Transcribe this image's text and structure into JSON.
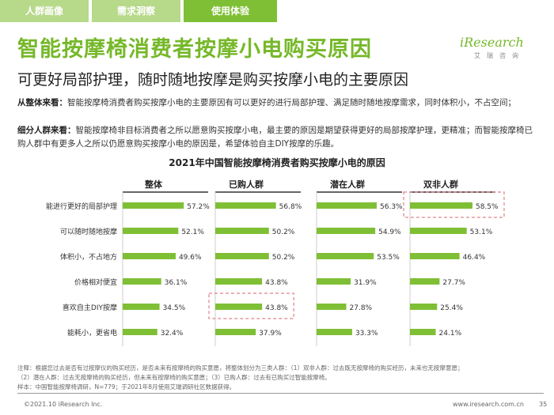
{
  "tabs": [
    "人群画像",
    "需求洞察",
    "使用体验"
  ],
  "title": "智能按摩椅消费者按摩小电购买原因",
  "subtitle": "可更好局部护理，随时随地按摩是购买按摩小电的主要原因",
  "logo": {
    "text": "iResearch",
    "sub": "艾瑞咨询"
  },
  "para1": {
    "label": "从整体来看：",
    "text": "智能按摩椅消费者购买按摩小电的主要原因有可以更好的进行局部护理、满足随时随地按摩需求，同时体积小，不占空间；"
  },
  "para2": {
    "label": "细分人群来看：",
    "text": "智能按摩椅非目标消费者之所以愿意购买按摩小电，最主要的原因是期望获得更好的局部按摩护理，更精准；而智能按摩椅已购人群中有更多人之所以仍愿意购买按摩小电的原因是，希望体验自主DIY按摩的乐趣。"
  },
  "chart_data": {
    "type": "bar",
    "orientation": "horizontal",
    "title": "2021年中国智能按摩椅消费者购买按摩小电的原因",
    "categories": [
      "能进行更好的局部护理",
      "可以随时随地按摩",
      "体积小，不占地方",
      "价格相对便宜",
      "喜欢自主DIY按摩",
      "能耗小，更省电"
    ],
    "series": [
      {
        "name": "整体",
        "values": [
          57.2,
          52.1,
          49.6,
          36.1,
          34.5,
          32.4
        ],
        "labels": [
          "57.2%",
          "52.1%",
          "49.6%",
          "36.1%",
          "34.5%",
          "32.4%"
        ]
      },
      {
        "name": "已购人群",
        "values": [
          56.8,
          50.2,
          50.2,
          43.8,
          43.8,
          37.9
        ],
        "labels": [
          "56.8%",
          "50.2%",
          "50.2%",
          "43.8%",
          "43.8%",
          "37.9%"
        ]
      },
      {
        "name": "潜在人群",
        "values": [
          56.3,
          54.9,
          53.5,
          31.9,
          27.8,
          33.3
        ],
        "labels": [
          "56.3%",
          "54.9%",
          "53.5%",
          "31.9%",
          "27.8%",
          "33.3%"
        ]
      },
      {
        "name": "双非人群",
        "values": [
          58.5,
          53.1,
          46.4,
          27.7,
          25.4,
          24.1
        ],
        "labels": [
          "58.5%",
          "53.1%",
          "46.4%",
          "27.7%",
          "25.4%",
          "24.1%"
        ]
      }
    ],
    "highlights": [
      {
        "series": 1,
        "category": 4
      },
      {
        "series": 3,
        "category": 0
      }
    ],
    "bar_color": "#7fbf35",
    "highlight_color": "#e0828a"
  },
  "footnote": {
    "line1": "注释：根据您过去是否有过按摩仪的购买经历，是否未来有按摩椅的购买意愿，将整体划分为三类人群：（1）双非人群：过去既无按摩椅的购买经历，未来也无按摩意愿；",
    "line2": "（2）潜在人群：过去无按摩椅的购买经历，但未来有按摩椅的购买意愿；（3）已购人群：过去有已购买过智能按摩椅。",
    "line3": "样本：中国智能按摩椅调研，N=779；于2021年8月使用艾瑞调研社区数据获得。"
  },
  "footer": {
    "left": "©2021.10 iResearch Inc.",
    "right": "www.iresearch.com.cn",
    "page": "35"
  }
}
